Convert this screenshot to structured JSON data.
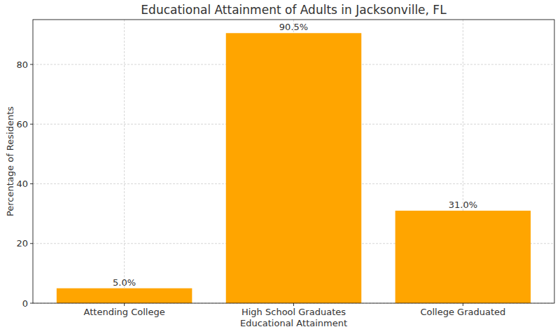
{
  "chart_data": {
    "type": "bar",
    "title": "Educational Attainment of Adults in Jacksonville, FL",
    "x_label": "Educational Attainment",
    "y_label": "Percentage of Residents",
    "categories": [
      "Attending College",
      "High School Graduates",
      "College Graduated"
    ],
    "values": [
      5.0,
      90.5,
      31.0
    ],
    "value_labels": [
      "5.0%",
      "90.5%",
      "31.0%"
    ],
    "color": "#ffa500",
    "ylim": [
      0,
      95.025
    ],
    "yticks": [
      0,
      20,
      40,
      60,
      80
    ],
    "grid": true,
    "data_labels": true
  }
}
